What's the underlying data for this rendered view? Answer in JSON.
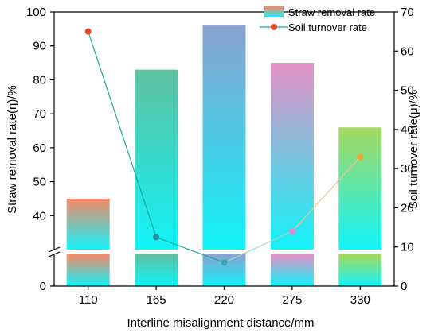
{
  "chart_data": {
    "type": "bar",
    "xlabel": "Interline misalignment distance/mm",
    "ylabel": "Straw removal rate(η)/%",
    "y2label": "Soil turnover rate(μ)/%",
    "categories": [
      "110",
      "165",
      "220",
      "275",
      "330"
    ],
    "y_axis": {
      "lower_segment": [
        0,
        10
      ],
      "upper_segment": [
        30,
        100
      ],
      "broken": true,
      "ticks": [
        0,
        40,
        50,
        60,
        70,
        80,
        90,
        100
      ]
    },
    "y2_axis": {
      "range": [
        0,
        70
      ],
      "ticks": [
        0,
        10,
        20,
        30,
        40,
        50,
        60,
        70
      ]
    },
    "series": [
      {
        "name": "Straw removal rate",
        "type": "bar",
        "axis": "left",
        "values": [
          45,
          83,
          96,
          85,
          66
        ],
        "top_colors": [
          "#f58a6a",
          "#5fc1a0",
          "#8aa1d2",
          "#e38fc4",
          "#a6d95f"
        ],
        "bottom_color": "#11f3f8"
      },
      {
        "name": "Soil turnover rate",
        "type": "line",
        "axis": "right",
        "values": [
          65,
          12.5,
          6,
          14,
          33
        ],
        "marker_colors": [
          "#de4a2c",
          "#2e8fa0",
          "#3aa7b5",
          "#e48ad0",
          "#f0a336"
        ],
        "line_colors": [
          "#1fa69a",
          "#1fa69a",
          "#a8d8b0",
          "#f3c391"
        ]
      }
    ],
    "legend_position": "top-right",
    "grid": false
  }
}
